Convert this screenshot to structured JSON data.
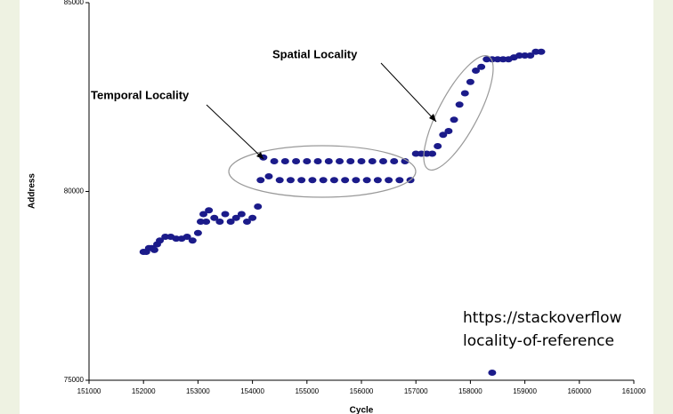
{
  "chart_data": {
    "type": "scatter",
    "x_label": "Cycle",
    "y_label": "Address",
    "annotations": [
      "Temporal Locality",
      "Spatial Locality"
    ],
    "caption_lines": [
      "https://stackoverflow",
      "locality-of-reference"
    ],
    "color": "#1b1b8a",
    "xlim": [
      151000,
      161000
    ],
    "xticks": [
      151000,
      152000,
      153000,
      154000,
      155000,
      156000,
      157000,
      158000,
      159000,
      160000,
      161000
    ],
    "ylim": [
      75000,
      85000
    ],
    "yticks": [
      75000,
      80000,
      85000
    ],
    "grid": false,
    "x": [
      152000,
      152050,
      152100,
      152150,
      152200,
      152250,
      152300,
      152400,
      152500,
      152600,
      152700,
      152800,
      152900,
      153000,
      153050,
      153100,
      153150,
      153200,
      153300,
      153400,
      153500,
      153600,
      153700,
      153800,
      153900,
      154000,
      154100,
      154150,
      154200,
      154300,
      154400,
      154500,
      154600,
      154700,
      154800,
      154900,
      155000,
      155100,
      155200,
      155300,
      155400,
      155500,
      155600,
      155700,
      155800,
      155900,
      156000,
      156100,
      156200,
      156300,
      156400,
      156500,
      156600,
      156700,
      156800,
      156900,
      157000,
      157100,
      157200,
      157300,
      157400,
      157500,
      157600,
      157700,
      157800,
      157900,
      158000,
      158100,
      158200,
      158300,
      158400,
      158500,
      158600,
      158700,
      158800,
      158900,
      159000,
      159100,
      159200,
      159300,
      158400
    ],
    "values": [
      78400,
      78400,
      78500,
      78500,
      78450,
      78600,
      78700,
      78800,
      78800,
      78750,
      78750,
      78800,
      78700,
      78900,
      79200,
      79400,
      79200,
      79500,
      79300,
      79200,
      79400,
      79200,
      79300,
      79400,
      79200,
      79300,
      79600,
      80300,
      80900,
      80400,
      80800,
      80300,
      80800,
      80300,
      80800,
      80300,
      80800,
      80300,
      80800,
      80300,
      80800,
      80300,
      80800,
      80300,
      80800,
      80300,
      80800,
      80300,
      80800,
      80300,
      80800,
      80300,
      80800,
      80300,
      80800,
      80300,
      81000,
      81000,
      81000,
      81000,
      81200,
      81500,
      81600,
      81900,
      82300,
      82600,
      82900,
      83200,
      83300,
      83500,
      83500,
      83500,
      83500,
      83500,
      83550,
      83600,
      83600,
      83600,
      83700,
      83700,
      75200
    ]
  }
}
